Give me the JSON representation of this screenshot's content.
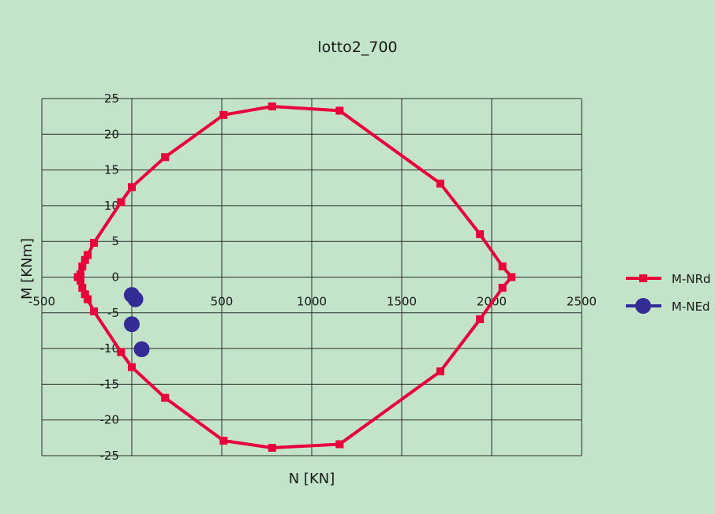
{
  "chart_data": {
    "type": "scatter",
    "title": "lotto2_700",
    "xlabel": "N [KN]",
    "ylabel": "M [KNm]",
    "xlim": [
      -500,
      2500
    ],
    "ylim": [
      -25,
      25
    ],
    "xticks": [
      "-500",
      "0",
      "500",
      "1000",
      "1500",
      "2000",
      "2500"
    ],
    "yticks": [
      "25",
      "20",
      "15",
      "10",
      "5",
      "0",
      "-5",
      "-10",
      "-15",
      "-20",
      "-25"
    ],
    "grid": true,
    "legend": "right",
    "series": [
      {
        "name": "M-NRd",
        "color": "#e8003a",
        "style": "line-square-markers",
        "points": [
          [
            2110,
            0
          ],
          [
            2060,
            1.5
          ],
          [
            1935,
            6.0
          ],
          [
            1715,
            13.1
          ],
          [
            1155,
            23.3
          ],
          [
            780,
            23.9
          ],
          [
            510,
            22.7
          ],
          [
            185,
            16.8
          ],
          [
            0,
            12.6
          ],
          [
            -60,
            10.5
          ],
          [
            -210,
            4.8
          ],
          [
            -245,
            3.1
          ],
          [
            -260,
            2.4
          ],
          [
            -275,
            1.5
          ],
          [
            -285,
            0.4
          ],
          [
            -300,
            0
          ],
          [
            -285,
            -0.5
          ],
          [
            -275,
            -1.5
          ],
          [
            -260,
            -2.4
          ],
          [
            -245,
            -3.1
          ],
          [
            -210,
            -4.8
          ],
          [
            -60,
            -10.5
          ],
          [
            0,
            -12.6
          ],
          [
            185,
            -16.9
          ],
          [
            510,
            -22.9
          ],
          [
            780,
            -23.9
          ],
          [
            1155,
            -23.4
          ],
          [
            1715,
            -13.2
          ],
          [
            1935,
            -5.9
          ],
          [
            2060,
            -1.5
          ],
          [
            2110,
            0
          ]
        ]
      },
      {
        "name": "M-NEd",
        "color": "#332c94",
        "style": "markers",
        "points": [
          [
            0,
            -2.5
          ],
          [
            20,
            -3.1
          ],
          [
            0,
            -6.6
          ],
          [
            55,
            -10.1
          ]
        ]
      }
    ]
  }
}
